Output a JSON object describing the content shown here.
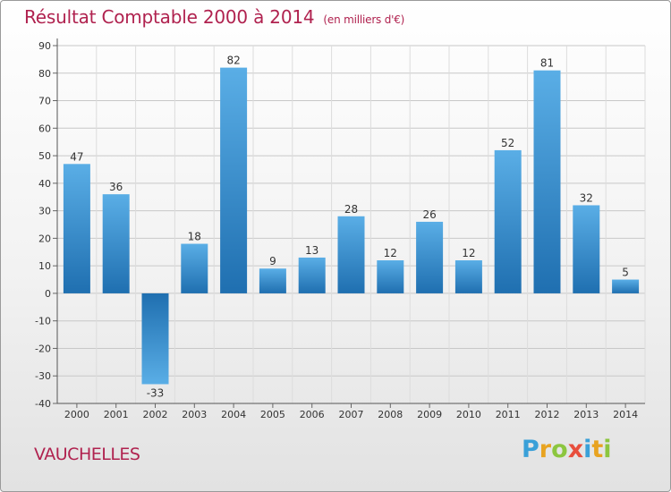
{
  "title": "Résultat Comptable 2000 à 2014",
  "subtitle": "(en milliers d'€)",
  "place": "VAUCHELLES",
  "logo": {
    "letters": [
      {
        "ch": "P",
        "color": "#3aa0d8"
      },
      {
        "ch": "r",
        "color": "#e8a320"
      },
      {
        "ch": "o",
        "color": "#8cc63f"
      },
      {
        "ch": "x",
        "color": "#e84e3c"
      },
      {
        "ch": "i",
        "color": "#3aa0d8"
      },
      {
        "ch": "t",
        "color": "#e8a320"
      },
      {
        "ch": "i",
        "color": "#8cc63f"
      }
    ]
  },
  "colors": {
    "title": "#b0224f",
    "bar_top": "#5aaee6",
    "bar_bottom": "#1f6fb0",
    "grid": "#c8c8c8",
    "axis_text": "#333333"
  },
  "chart_data": {
    "type": "bar",
    "title": "Résultat Comptable 2000 à 2014",
    "subtitle": "(en milliers d'€)",
    "categories": [
      "2000",
      "2001",
      "2002",
      "2003",
      "2004",
      "2005",
      "2006",
      "2007",
      "2008",
      "2009",
      "2010",
      "2011",
      "2012",
      "2013",
      "2014"
    ],
    "values": [
      47,
      36,
      -33,
      18,
      82,
      9,
      13,
      28,
      12,
      26,
      12,
      52,
      81,
      32,
      5
    ],
    "ylim": [
      -40,
      90
    ],
    "yticks": [
      90,
      80,
      70,
      60,
      50,
      40,
      30,
      20,
      10,
      0,
      -10,
      -20,
      -30,
      -40
    ],
    "grid": true
  }
}
